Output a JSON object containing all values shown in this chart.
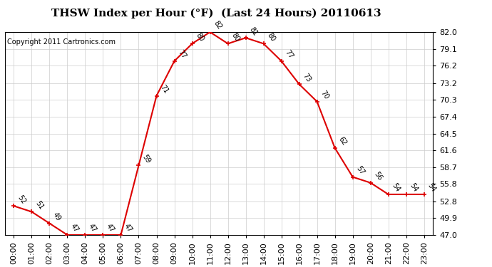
{
  "title": "THSW Index per Hour (°F)  (Last 24 Hours) 20110613",
  "copyright": "Copyright 2011 Cartronics.com",
  "hours": [
    "00:00",
    "01:00",
    "02:00",
    "03:00",
    "04:00",
    "05:00",
    "06:00",
    "07:00",
    "08:00",
    "09:00",
    "10:00",
    "11:00",
    "12:00",
    "13:00",
    "14:00",
    "15:00",
    "16:00",
    "17:00",
    "18:00",
    "19:00",
    "20:00",
    "21:00",
    "22:00",
    "23:00"
  ],
  "values": [
    52,
    51,
    49,
    47,
    47,
    47,
    47,
    59,
    71,
    77,
    80,
    82,
    80,
    81,
    80,
    77,
    73,
    70,
    62,
    57,
    56,
    54,
    54,
    54
  ],
  "ylim_min": 47.0,
  "ylim_max": 82.0,
  "yticks": [
    47.0,
    49.9,
    52.8,
    55.8,
    58.7,
    61.6,
    64.5,
    67.4,
    70.3,
    73.2,
    76.2,
    79.1,
    82.0
  ],
  "line_color": "#dd0000",
  "marker_color": "#dd0000",
  "bg_color": "#ffffff",
  "grid_color": "#cccccc",
  "title_fontsize": 11,
  "label_fontsize": 7,
  "tick_fontsize": 8,
  "copyright_fontsize": 7
}
